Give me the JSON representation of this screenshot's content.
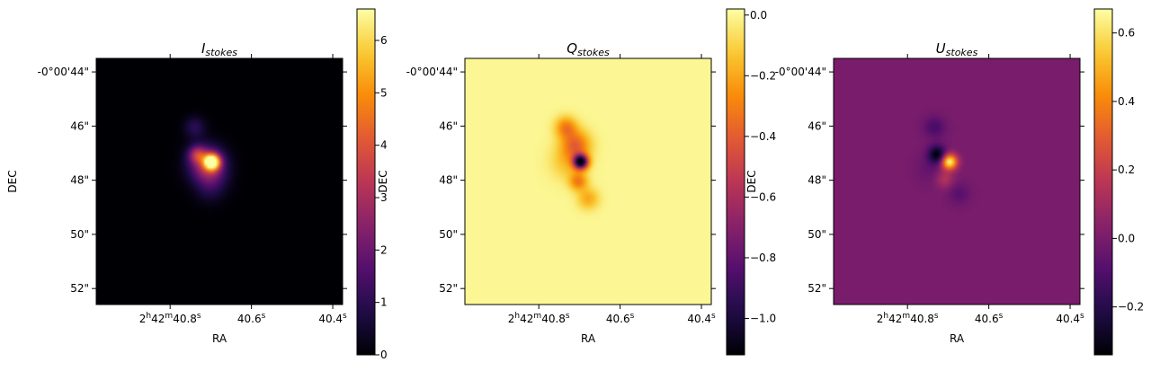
{
  "chart_data": [
    {
      "type": "heatmap",
      "title": "I",
      "title_subscript": "stokes",
      "xlabel": "RA",
      "ylabel": "DEC",
      "x_ticks": [
        {
          "main": "2",
          "sup1": "h",
          "mid": "42",
          "sup2": "m",
          "tail": "40.8",
          "sup3": "s"
        },
        {
          "main": "40.6",
          "sup3": "s"
        },
        {
          "main": "40.4",
          "sup3": "s"
        }
      ],
      "y_ticks": [
        "-0°00'44\"",
        "46\"",
        "48\"",
        "50\"",
        "52\""
      ],
      "colormap": "inferno",
      "colorbar": {
        "min": 0.0,
        "max": 6.6,
        "ticks": [
          0,
          1,
          2,
          3,
          4,
          5,
          6
        ]
      },
      "background_value": 0.0,
      "features": [
        {
          "x": 0.47,
          "y": 0.42,
          "value": 6.6,
          "spread": 0.022
        },
        {
          "x": 0.45,
          "y": 0.43,
          "value": 3.0,
          "spread": 0.05
        },
        {
          "x": 0.41,
          "y": 0.39,
          "value": 2.3,
          "spread": 0.025
        },
        {
          "x": 0.4,
          "y": 0.28,
          "value": 1.0,
          "spread": 0.03
        },
        {
          "x": 0.47,
          "y": 0.49,
          "value": 0.8,
          "spread": 0.045
        },
        {
          "x": 0.46,
          "y": 0.54,
          "value": 0.4,
          "spread": 0.04
        }
      ]
    },
    {
      "type": "heatmap",
      "title": "Q",
      "title_subscript": "stokes",
      "xlabel": "RA",
      "ylabel": "DEC",
      "x_ticks": [
        {
          "main": "2",
          "sup1": "h",
          "mid": "42",
          "sup2": "m",
          "tail": "40.8",
          "sup3": "s"
        },
        {
          "main": "40.6",
          "sup3": "s"
        },
        {
          "main": "40.4",
          "sup3": "s"
        }
      ],
      "y_ticks": [
        "-0°00'44\"",
        "46\"",
        "48\"",
        "50\"",
        "52\""
      ],
      "colormap": "inferno",
      "colorbar": {
        "min": -1.12,
        "max": 0.02,
        "ticks": [
          -1.0,
          -0.8,
          -0.6,
          -0.4,
          -0.2,
          0.0
        ],
        "tick_labels": [
          "−1.0",
          "−0.8",
          "−0.6",
          "−0.4",
          "−0.2",
          "0.0"
        ]
      },
      "background_value": 0.0,
      "features": [
        {
          "x": 0.47,
          "y": 0.42,
          "value": -1.12,
          "spread": 0.02
        },
        {
          "x": 0.45,
          "y": 0.35,
          "value": -0.35,
          "spread": 0.04
        },
        {
          "x": 0.41,
          "y": 0.28,
          "value": -0.3,
          "spread": 0.03
        },
        {
          "x": 0.46,
          "y": 0.5,
          "value": -0.3,
          "spread": 0.025
        },
        {
          "x": 0.5,
          "y": 0.57,
          "value": -0.2,
          "spread": 0.03
        },
        {
          "x": 0.42,
          "y": 0.42,
          "value": -0.15,
          "spread": 0.05
        }
      ]
    },
    {
      "type": "heatmap",
      "title": "U",
      "title_subscript": "stokes",
      "xlabel": "RA",
      "ylabel": "DEC",
      "x_ticks": [
        {
          "main": "2",
          "sup1": "h",
          "mid": "42",
          "sup2": "m",
          "tail": "40.8",
          "sup3": "s"
        },
        {
          "main": "40.6",
          "sup3": "s"
        },
        {
          "main": "40.4",
          "sup3": "s"
        }
      ],
      "y_ticks": [
        "-0°00'44\"",
        "46\"",
        "48\"",
        "50\"",
        "52\""
      ],
      "colormap": "inferno",
      "colorbar": {
        "min": -0.34,
        "max": 0.67,
        "ticks": [
          -0.2,
          0.0,
          0.2,
          0.4,
          0.6
        ],
        "tick_labels": [
          "−0.2",
          "0.0",
          "0.2",
          "0.4",
          "0.6"
        ]
      },
      "background_value": 0.0,
      "features": [
        {
          "x": 0.42,
          "y": 0.39,
          "value": -0.34,
          "spread": 0.025
        },
        {
          "x": 0.47,
          "y": 0.42,
          "value": 0.67,
          "spread": 0.022
        },
        {
          "x": 0.41,
          "y": 0.28,
          "value": -0.12,
          "spread": 0.03
        },
        {
          "x": 0.45,
          "y": 0.49,
          "value": 0.15,
          "spread": 0.025
        },
        {
          "x": 0.51,
          "y": 0.55,
          "value": -0.08,
          "spread": 0.03
        },
        {
          "x": 0.39,
          "y": 0.45,
          "value": -0.05,
          "spread": 0.04
        }
      ]
    }
  ]
}
